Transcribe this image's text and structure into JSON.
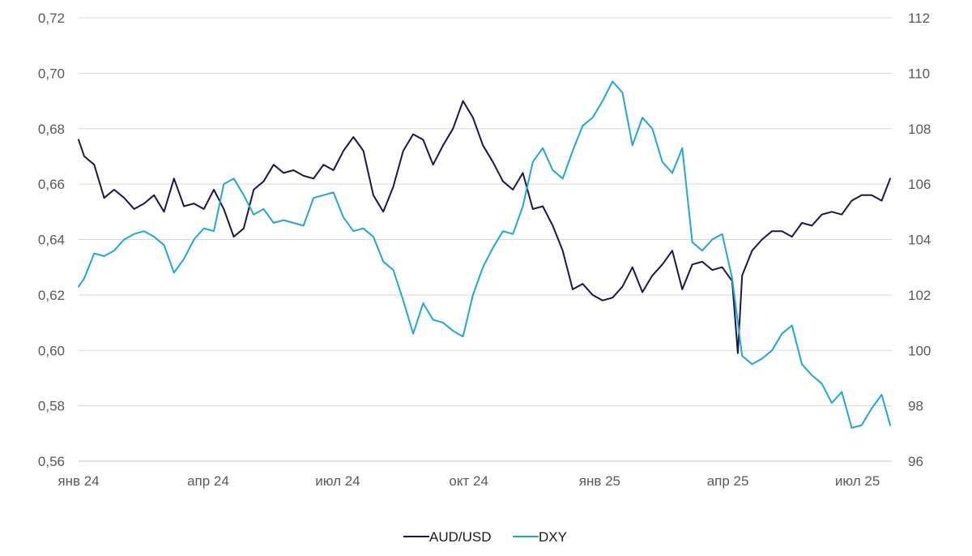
{
  "chart_data": {
    "type": "line",
    "title": "",
    "x_ticks": [
      "янв 24",
      "апр 24",
      "июл 24",
      "окт 24",
      "янв 25",
      "апр 25",
      "июл 25"
    ],
    "y_left": {
      "ticks": [
        "0,72",
        "0,70",
        "0,68",
        "0,66",
        "0,64",
        "0,62",
        "0,60",
        "0,58",
        "0,56"
      ],
      "ylim": [
        0.56,
        0.72
      ]
    },
    "y_right": {
      "ticks": [
        "112",
        "110",
        "108",
        "106",
        "104",
        "102",
        "100",
        "98",
        "96"
      ],
      "ylim": [
        96,
        112
      ]
    },
    "grid": "horizontal",
    "legend_position": "bottom",
    "series": [
      {
        "name": "AUD/USD",
        "axis": "left",
        "color": "#1b1748",
        "x": [
          "2024-01-01",
          "2024-01-05",
          "2024-01-12",
          "2024-01-19",
          "2024-01-26",
          "2024-02-02",
          "2024-02-09",
          "2024-02-16",
          "2024-02-23",
          "2024-03-01",
          "2024-03-08",
          "2024-03-15",
          "2024-03-22",
          "2024-03-29",
          "2024-04-05",
          "2024-04-12",
          "2024-04-19",
          "2024-04-26",
          "2024-05-03",
          "2024-05-10",
          "2024-05-17",
          "2024-05-24",
          "2024-05-31",
          "2024-06-07",
          "2024-06-14",
          "2024-06-21",
          "2024-06-28",
          "2024-07-05",
          "2024-07-12",
          "2024-07-19",
          "2024-07-26",
          "2024-08-02",
          "2024-08-09",
          "2024-08-16",
          "2024-08-23",
          "2024-08-30",
          "2024-09-06",
          "2024-09-13",
          "2024-09-20",
          "2024-09-27",
          "2024-10-04",
          "2024-10-11",
          "2024-10-18",
          "2024-10-25",
          "2024-11-01",
          "2024-11-08",
          "2024-11-15",
          "2024-11-22",
          "2024-11-29",
          "2024-12-06",
          "2024-12-13",
          "2024-12-20",
          "2024-12-27",
          "2025-01-03",
          "2025-01-10",
          "2025-01-17",
          "2025-01-24",
          "2025-01-31",
          "2025-02-07",
          "2025-02-14",
          "2025-02-21",
          "2025-02-28",
          "2025-03-07",
          "2025-03-14",
          "2025-03-21",
          "2025-03-28",
          "2025-04-04",
          "2025-04-08",
          "2025-04-11",
          "2025-04-18",
          "2025-04-25",
          "2025-05-02",
          "2025-05-09",
          "2025-05-16",
          "2025-05-23",
          "2025-05-30",
          "2025-06-06",
          "2025-06-13",
          "2025-06-20",
          "2025-06-27",
          "2025-07-04",
          "2025-07-11",
          "2025-07-18",
          "2025-07-24"
        ],
        "values": [
          0.676,
          0.67,
          0.667,
          0.655,
          0.658,
          0.655,
          0.651,
          0.653,
          0.656,
          0.65,
          0.662,
          0.652,
          0.653,
          0.651,
          0.658,
          0.651,
          0.641,
          0.644,
          0.658,
          0.661,
          0.667,
          0.664,
          0.665,
          0.663,
          0.662,
          0.667,
          0.665,
          0.672,
          0.677,
          0.672,
          0.656,
          0.65,
          0.659,
          0.672,
          0.678,
          0.676,
          0.667,
          0.674,
          0.68,
          0.69,
          0.684,
          0.674,
          0.668,
          0.661,
          0.658,
          0.664,
          0.651,
          0.652,
          0.645,
          0.636,
          0.622,
          0.624,
          0.62,
          0.618,
          0.619,
          0.623,
          0.63,
          0.621,
          0.627,
          0.631,
          0.636,
          0.622,
          0.631,
          0.632,
          0.629,
          0.63,
          0.625,
          0.599,
          0.627,
          0.636,
          0.64,
          0.643,
          0.643,
          0.641,
          0.646,
          0.645,
          0.649,
          0.65,
          0.649,
          0.654,
          0.656,
          0.656,
          0.654,
          0.662
        ]
      },
      {
        "name": "DXY",
        "axis": "right",
        "color": "#1da7dd",
        "x": [
          "2024-01-01",
          "2024-01-05",
          "2024-01-12",
          "2024-01-19",
          "2024-01-26",
          "2024-02-02",
          "2024-02-09",
          "2024-02-16",
          "2024-02-23",
          "2024-03-01",
          "2024-03-08",
          "2024-03-15",
          "2024-03-22",
          "2024-03-29",
          "2024-04-05",
          "2024-04-12",
          "2024-04-19",
          "2024-04-26",
          "2024-05-03",
          "2024-05-10",
          "2024-05-17",
          "2024-05-24",
          "2024-05-31",
          "2024-06-07",
          "2024-06-14",
          "2024-06-21",
          "2024-06-28",
          "2024-07-05",
          "2024-07-12",
          "2024-07-19",
          "2024-07-26",
          "2024-08-02",
          "2024-08-09",
          "2024-08-16",
          "2024-08-23",
          "2024-08-30",
          "2024-09-06",
          "2024-09-13",
          "2024-09-20",
          "2024-09-27",
          "2024-10-04",
          "2024-10-11",
          "2024-10-18",
          "2024-10-25",
          "2024-11-01",
          "2024-11-08",
          "2024-11-15",
          "2024-11-22",
          "2024-11-29",
          "2024-12-06",
          "2024-12-13",
          "2024-12-20",
          "2024-12-27",
          "2025-01-03",
          "2025-01-10",
          "2025-01-17",
          "2025-01-24",
          "2025-01-31",
          "2025-02-07",
          "2025-02-14",
          "2025-02-21",
          "2025-02-28",
          "2025-03-07",
          "2025-03-14",
          "2025-03-21",
          "2025-03-28",
          "2025-04-04",
          "2025-04-11",
          "2025-04-18",
          "2025-04-25",
          "2025-05-02",
          "2025-05-09",
          "2025-05-16",
          "2025-05-23",
          "2025-05-30",
          "2025-06-06",
          "2025-06-13",
          "2025-06-20",
          "2025-06-27",
          "2025-07-04",
          "2025-07-11",
          "2025-07-18",
          "2025-07-24"
        ],
        "values": [
          102.3,
          102.6,
          103.5,
          103.4,
          103.6,
          104.0,
          104.2,
          104.3,
          104.1,
          103.8,
          102.8,
          103.3,
          104.0,
          104.4,
          104.3,
          106.0,
          106.2,
          105.6,
          104.9,
          105.1,
          104.6,
          104.7,
          104.6,
          104.5,
          105.5,
          105.6,
          105.7,
          104.8,
          104.3,
          104.4,
          104.1,
          103.2,
          102.9,
          101.8,
          100.6,
          101.7,
          101.1,
          101.0,
          100.7,
          100.5,
          102.0,
          103.0,
          103.7,
          104.3,
          104.2,
          105.2,
          106.8,
          107.3,
          106.5,
          106.2,
          107.2,
          108.1,
          108.4,
          109.0,
          109.7,
          109.3,
          107.4,
          108.4,
          108.0,
          106.8,
          106.4,
          107.3,
          103.9,
          103.6,
          104.0,
          104.2,
          102.6,
          99.8,
          99.5,
          99.7,
          100.0,
          100.6,
          100.9,
          99.5,
          99.1,
          98.8,
          98.1,
          98.5,
          97.2,
          97.3,
          97.9,
          98.4,
          97.3
        ]
      }
    ]
  }
}
